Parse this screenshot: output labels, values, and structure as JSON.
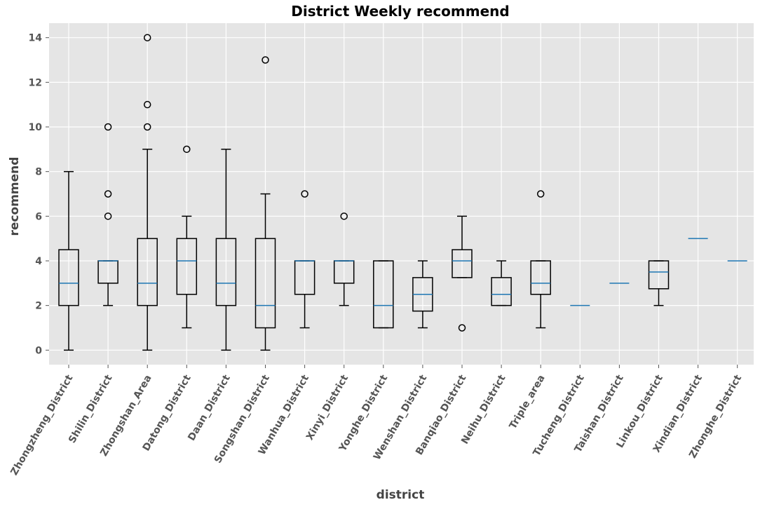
{
  "chart_data": {
    "type": "box",
    "title": "District Weekly recommend",
    "xlabel": "district",
    "ylabel": "recommend",
    "ylim": [
      -0.65,
      14.65
    ],
    "yticks": [
      0,
      2,
      4,
      6,
      8,
      10,
      12,
      14
    ],
    "grid": true,
    "categories": [
      "Zhongzheng_District",
      "Shilin_District",
      "Zhongshan_Area",
      "Datong_District",
      "Daan_District",
      "Songshan_District",
      "Wanhua_District",
      "Xinyi_District",
      "Yonghe_District",
      "Wenshan_District",
      "Banqiao_District",
      "Neihu_District",
      "Triple_area",
      "Tucheng_District",
      "Taishan_District",
      "Linkou_District",
      "Xindian_District",
      "Zhonghe_District"
    ],
    "boxes": [
      {
        "whislo": 0,
        "q1": 2,
        "med": 3,
        "q3": 4.5,
        "whishi": 8,
        "fliers": []
      },
      {
        "whislo": 2,
        "q1": 3,
        "med": 4,
        "q3": 4,
        "whishi": 4,
        "fliers": [
          6,
          7,
          10
        ]
      },
      {
        "whislo": 0,
        "q1": 2,
        "med": 3,
        "q3": 5,
        "whishi": 9,
        "fliers": [
          10,
          11,
          14
        ]
      },
      {
        "whislo": 1,
        "q1": 2.5,
        "med": 4,
        "q3": 5,
        "whishi": 6,
        "fliers": [
          9
        ]
      },
      {
        "whislo": 0,
        "q1": 2,
        "med": 3,
        "q3": 5,
        "whishi": 9,
        "fliers": []
      },
      {
        "whislo": 0,
        "q1": 1,
        "med": 2,
        "q3": 5,
        "whishi": 7,
        "fliers": [
          13
        ]
      },
      {
        "whislo": 1,
        "q1": 2.5,
        "med": 4,
        "q3": 4,
        "whishi": 4,
        "fliers": [
          7
        ]
      },
      {
        "whislo": 2,
        "q1": 3,
        "med": 4,
        "q3": 4,
        "whishi": 4,
        "fliers": [
          6
        ]
      },
      {
        "whislo": 1,
        "q1": 1,
        "med": 2,
        "q3": 4,
        "whishi": 4,
        "fliers": []
      },
      {
        "whislo": 1,
        "q1": 1.75,
        "med": 2.5,
        "q3": 3.25,
        "whishi": 4,
        "fliers": []
      },
      {
        "whislo": 3.25,
        "q1": 3.25,
        "med": 4,
        "q3": 4.5,
        "whishi": 6,
        "fliers": [
          1
        ]
      },
      {
        "whislo": 2,
        "q1": 2,
        "med": 2.5,
        "q3": 3.25,
        "whishi": 4,
        "fliers": []
      },
      {
        "whislo": 1,
        "q1": 2.5,
        "med": 3,
        "q3": 4,
        "whishi": 4,
        "fliers": [
          7
        ]
      },
      {
        "whislo": 2,
        "q1": 2,
        "med": 2,
        "q3": 2,
        "whishi": 2,
        "fliers": []
      },
      {
        "whislo": 3,
        "q1": 3,
        "med": 3,
        "q3": 3,
        "whishi": 3,
        "fliers": []
      },
      {
        "whislo": 2,
        "q1": 2.75,
        "med": 3.5,
        "q3": 4,
        "whishi": 4,
        "fliers": []
      },
      {
        "whislo": 5,
        "q1": 5,
        "med": 5,
        "q3": 5,
        "whishi": 5,
        "fliers": []
      },
      {
        "whislo": 4,
        "q1": 4,
        "med": 4,
        "q3": 4,
        "whishi": 4,
        "fliers": []
      }
    ],
    "colors": {
      "background": "#e5e5e5",
      "grid": "#ffffff",
      "median": "#1f77b4",
      "box": "#000000"
    }
  }
}
